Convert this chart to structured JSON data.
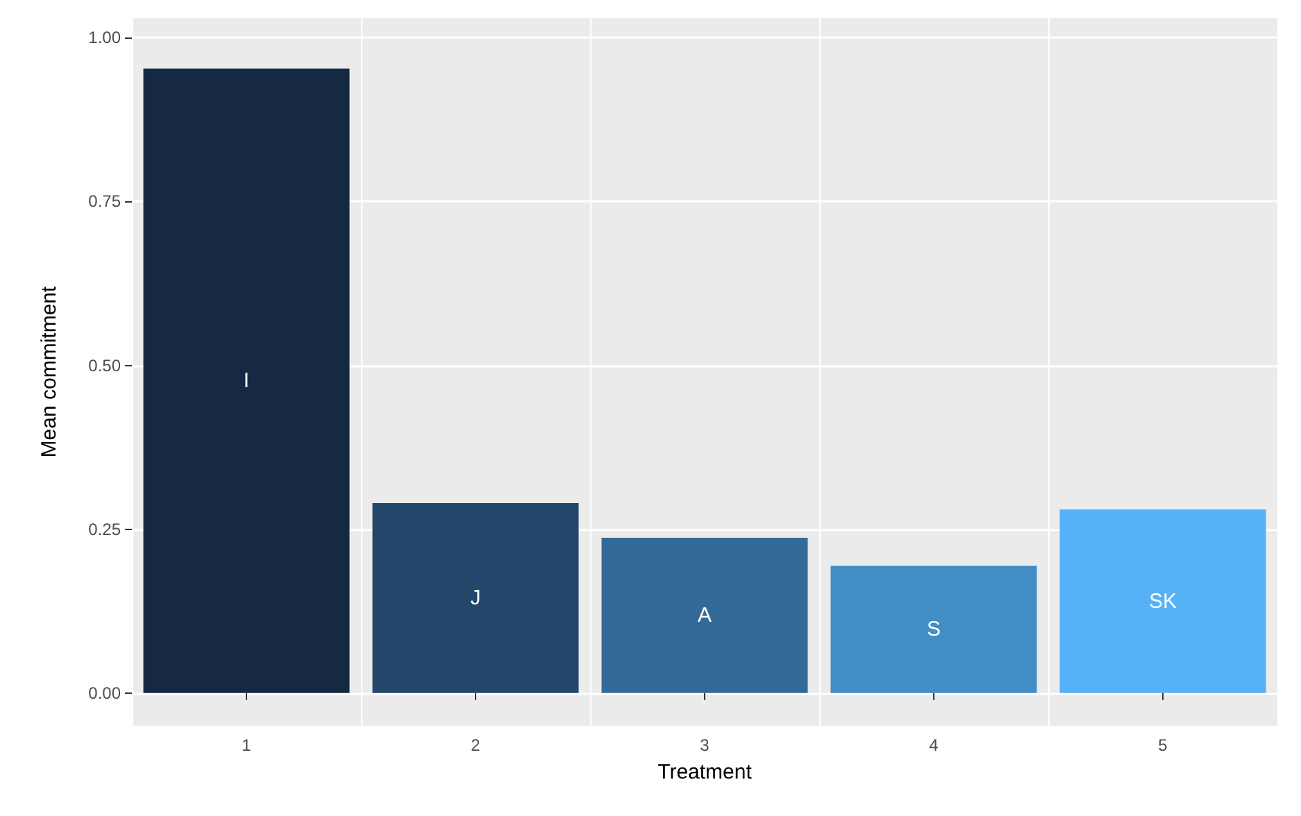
{
  "chart_data": {
    "type": "bar",
    "xlabel": "Treatment",
    "ylabel": "Mean commitment",
    "categories": [
      "1",
      "2",
      "3",
      "4",
      "5"
    ],
    "values": [
      0.953,
      0.29,
      0.237,
      0.194,
      0.28
    ],
    "colors": [
      "#152a42",
      "#22476b",
      "#336a98",
      "#438dc6",
      "#56b1f7"
    ],
    "ylim": [
      -0.05,
      1.03
    ],
    "yticks": [
      {
        "value": 0,
        "label": "0.00"
      },
      {
        "value": 0.25,
        "label": "0.25"
      },
      {
        "value": 0.5,
        "label": "0.50"
      },
      {
        "value": 0.75,
        "label": "0.75"
      },
      {
        "value": 1,
        "label": "1.00"
      }
    ],
    "annotations": [
      "I",
      "J",
      "A",
      "S",
      "SK"
    ],
    "grid": true
  }
}
